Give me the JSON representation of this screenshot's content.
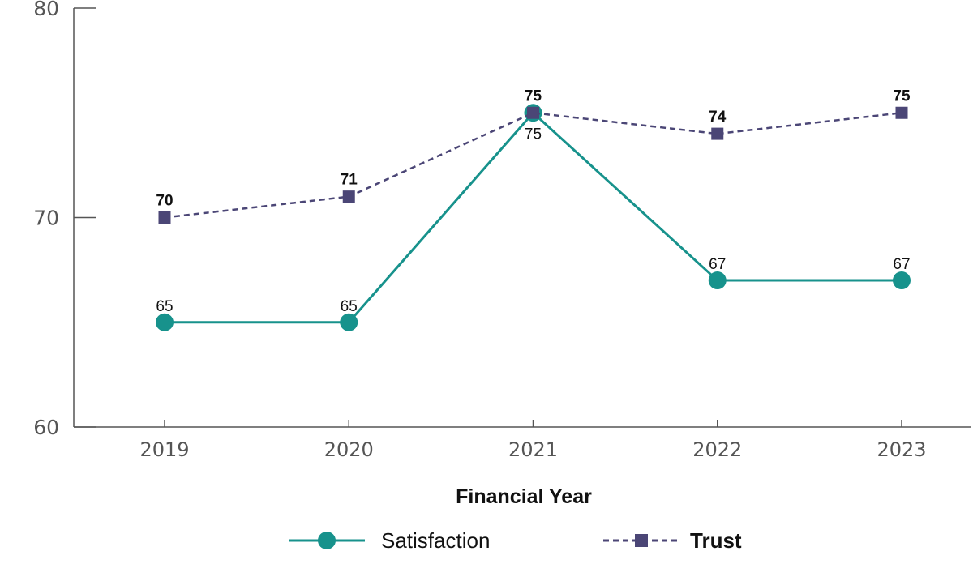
{
  "chart_data": {
    "type": "line",
    "xlabel": "Financial Year",
    "ylabel": "",
    "categories": [
      "2019",
      "2020",
      "2021",
      "2022",
      "2023"
    ],
    "ylim": [
      60,
      80
    ],
    "yticks": [
      60,
      70,
      80
    ],
    "grid": false,
    "legend_position": "bottom",
    "series": [
      {
        "name": "Satisfaction",
        "values": [
          65,
          65,
          75,
          67,
          67
        ],
        "color": "#17928c",
        "line_style": "solid",
        "marker": "circle"
      },
      {
        "name": "Trust",
        "values": [
          70,
          71,
          75,
          74,
          75
        ],
        "color": "#4b4676",
        "line_style": "dashed",
        "marker": "square"
      }
    ]
  }
}
